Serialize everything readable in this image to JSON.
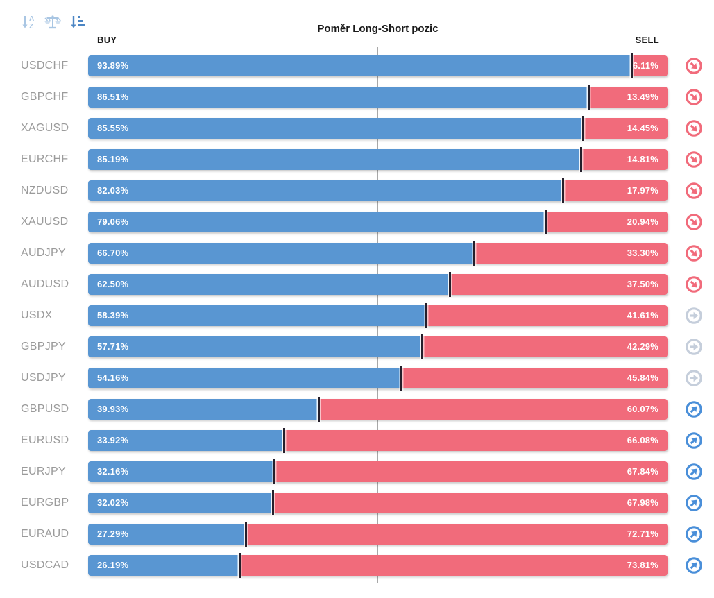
{
  "header": {
    "title": "Poměr Long-Short pozic",
    "buy_label": "BUY",
    "sell_label": "SELL"
  },
  "toolbar": {
    "sort_alpha_icon": "sort-alphabetical",
    "balance_icon": "balance-scales",
    "sort_value_icon": "sort-by-value",
    "active_sort": "sort-by-value"
  },
  "colors": {
    "buy_bar": "#5996d2",
    "sell_bar": "#f16b7b",
    "segment_divider": "#251f2b",
    "center_line": "#a8a8a8",
    "pair_label": "#9b9b9b",
    "trend_down": "#f16b7b",
    "trend_neutral": "#c5cedb",
    "trend_up": "#4a8fd9",
    "inactive_tool": "#a9c6e3",
    "active_tool": "#4c86c4"
  },
  "chart_data": {
    "type": "bar",
    "orientation": "horizontal",
    "stacked": true,
    "title": "Poměr Long-Short pozic",
    "xlim": [
      0,
      100
    ],
    "center_marker": 50,
    "legend_position": "top (BUY left, SELL right)",
    "grid": "single vertical center line at 50%",
    "categories": [
      "USDCHF",
      "GBPCHF",
      "XAGUSD",
      "EURCHF",
      "NZDUSD",
      "XAUUSD",
      "AUDJPY",
      "AUDUSD",
      "USDX",
      "GBPJPY",
      "USDJPY",
      "GBPUSD",
      "EURUSD",
      "EURJPY",
      "EURGBP",
      "EURAUD",
      "USDCAD"
    ],
    "series": [
      {
        "name": "BUY",
        "color": "#5996d2",
        "values": [
          93.89,
          86.51,
          85.55,
          85.19,
          82.03,
          79.06,
          66.7,
          62.5,
          58.39,
          57.71,
          54.16,
          39.93,
          33.92,
          32.16,
          32.02,
          27.29,
          26.19
        ]
      },
      {
        "name": "SELL",
        "color": "#f16b7b",
        "values": [
          6.11,
          13.49,
          14.45,
          14.81,
          17.97,
          20.94,
          33.3,
          37.5,
          41.61,
          42.29,
          45.84,
          60.07,
          66.08,
          67.84,
          67.98,
          72.71,
          73.81
        ]
      }
    ]
  },
  "rows": [
    {
      "pair": "USDCHF",
      "buy_pct": 93.89,
      "sell_pct": 6.11,
      "buy_label": "93.89%",
      "sell_label": "6.11%",
      "trend": "down"
    },
    {
      "pair": "GBPCHF",
      "buy_pct": 86.51,
      "sell_pct": 13.49,
      "buy_label": "86.51%",
      "sell_label": "13.49%",
      "trend": "down"
    },
    {
      "pair": "XAGUSD",
      "buy_pct": 85.55,
      "sell_pct": 14.45,
      "buy_label": "85.55%",
      "sell_label": "14.45%",
      "trend": "down"
    },
    {
      "pair": "EURCHF",
      "buy_pct": 85.19,
      "sell_pct": 14.81,
      "buy_label": "85.19%",
      "sell_label": "14.81%",
      "trend": "down"
    },
    {
      "pair": "NZDUSD",
      "buy_pct": 82.03,
      "sell_pct": 17.97,
      "buy_label": "82.03%",
      "sell_label": "17.97%",
      "trend": "down"
    },
    {
      "pair": "XAUUSD",
      "buy_pct": 79.06,
      "sell_pct": 20.94,
      "buy_label": "79.06%",
      "sell_label": "20.94%",
      "trend": "down"
    },
    {
      "pair": "AUDJPY",
      "buy_pct": 66.7,
      "sell_pct": 33.3,
      "buy_label": "66.70%",
      "sell_label": "33.30%",
      "trend": "down"
    },
    {
      "pair": "AUDUSD",
      "buy_pct": 62.5,
      "sell_pct": 37.5,
      "buy_label": "62.50%",
      "sell_label": "37.50%",
      "trend": "down"
    },
    {
      "pair": "USDX",
      "buy_pct": 58.39,
      "sell_pct": 41.61,
      "buy_label": "58.39%",
      "sell_label": "41.61%",
      "trend": "neutral"
    },
    {
      "pair": "GBPJPY",
      "buy_pct": 57.71,
      "sell_pct": 42.29,
      "buy_label": "57.71%",
      "sell_label": "42.29%",
      "trend": "neutral"
    },
    {
      "pair": "USDJPY",
      "buy_pct": 54.16,
      "sell_pct": 45.84,
      "buy_label": "54.16%",
      "sell_label": "45.84%",
      "trend": "neutral"
    },
    {
      "pair": "GBPUSD",
      "buy_pct": 39.93,
      "sell_pct": 60.07,
      "buy_label": "39.93%",
      "sell_label": "60.07%",
      "trend": "up"
    },
    {
      "pair": "EURUSD",
      "buy_pct": 33.92,
      "sell_pct": 66.08,
      "buy_label": "33.92%",
      "sell_label": "66.08%",
      "trend": "up"
    },
    {
      "pair": "EURJPY",
      "buy_pct": 32.16,
      "sell_pct": 67.84,
      "buy_label": "32.16%",
      "sell_label": "67.84%",
      "trend": "up"
    },
    {
      "pair": "EURGBP",
      "buy_pct": 32.02,
      "sell_pct": 67.98,
      "buy_label": "32.02%",
      "sell_label": "67.98%",
      "trend": "up"
    },
    {
      "pair": "EURAUD",
      "buy_pct": 27.29,
      "sell_pct": 72.71,
      "buy_label": "27.29%",
      "sell_label": "72.71%",
      "trend": "up"
    },
    {
      "pair": "USDCAD",
      "buy_pct": 26.19,
      "sell_pct": 73.81,
      "buy_label": "26.19%",
      "sell_label": "73.81%",
      "trend": "up"
    }
  ]
}
